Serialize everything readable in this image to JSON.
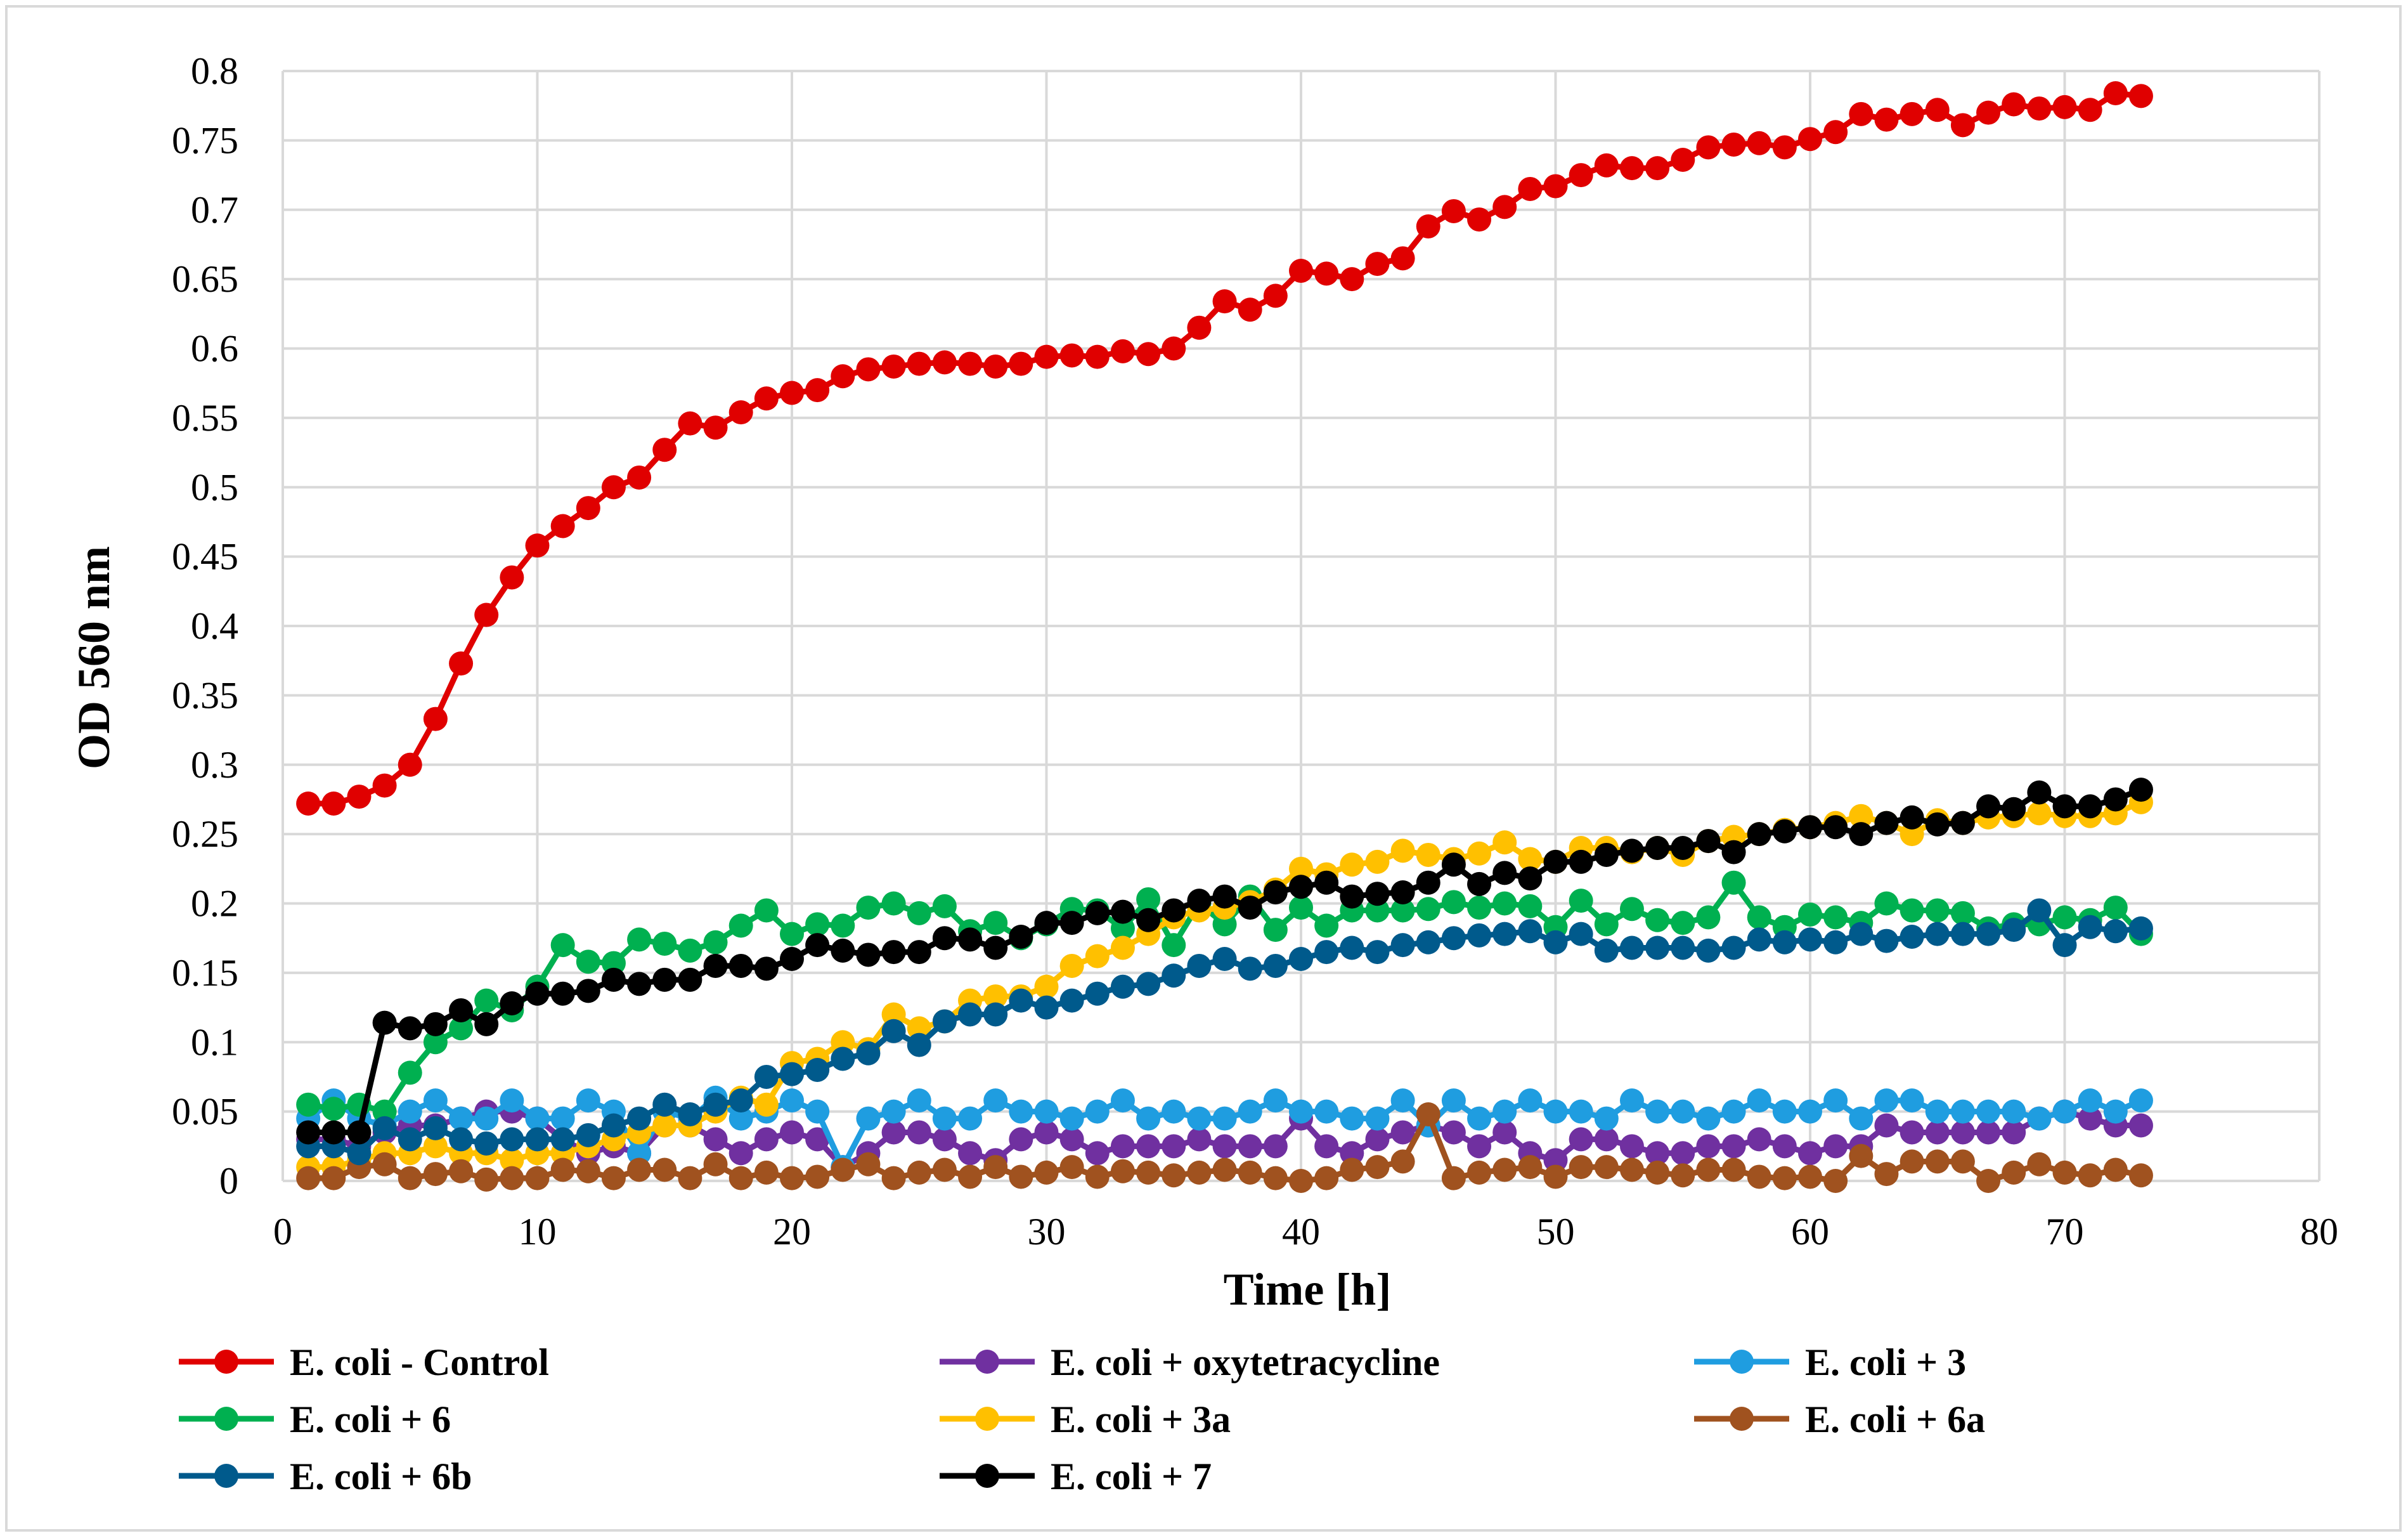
{
  "chart_data": {
    "type": "line",
    "xlabel": "Time [h]",
    "ylabel": "OD 560 nm",
    "xlim": [
      0,
      80
    ],
    "ylim": [
      0,
      0.8
    ],
    "x_ticks": [
      "0",
      "10",
      "20",
      "30",
      "40",
      "50",
      "60",
      "70",
      "80"
    ],
    "y_ticks": [
      "0",
      "0.05",
      "0.1",
      "0.15",
      "0.2",
      "0.25",
      "0.3",
      "0.35",
      "0.4",
      "0.45",
      "0.5",
      "0.55",
      "0.6",
      "0.65",
      "0.7",
      "0.75",
      "0.8"
    ],
    "grid": true,
    "legend_position": "bottom",
    "series": [
      {
        "name": "E. coli - Control",
        "color": "#e00000",
        "x_start": 1,
        "values": [
          0.272,
          0.272,
          0.277,
          0.285,
          0.3,
          0.333,
          0.373,
          0.408,
          0.435,
          0.458,
          0.472,
          0.485,
          0.5,
          0.507,
          0.527,
          0.546,
          0.543,
          0.554,
          0.564,
          0.568,
          0.57,
          0.58,
          0.585,
          0.587,
          0.589,
          0.59,
          0.589,
          0.587,
          0.589,
          0.594,
          0.595,
          0.594,
          0.598,
          0.596,
          0.6,
          0.615,
          0.634,
          0.628,
          0.638,
          0.656,
          0.654,
          0.65,
          0.661,
          0.665,
          0.688,
          0.699,
          0.693,
          0.702,
          0.715,
          0.717,
          0.725,
          0.732,
          0.73,
          0.73,
          0.736,
          0.745,
          0.747,
          0.748,
          0.745,
          0.751,
          0.756,
          0.769,
          0.765,
          0.769,
          0.772,
          0.761,
          0.77,
          0.776,
          0.773,
          0.774,
          0.772,
          0.784,
          0.782
        ]
      },
      {
        "name": "E. coli + oxytetracycline",
        "color": "#7030a0",
        "x_start": 1,
        "values": [
          0.03,
          0.03,
          0.025,
          0.035,
          0.04,
          0.04,
          0.045,
          0.05,
          0.05,
          0.045,
          0.03,
          0.02,
          0.025,
          0.02,
          0.04,
          0.04,
          0.03,
          0.02,
          0.03,
          0.035,
          0.03,
          0.01,
          0.02,
          0.035,
          0.035,
          0.03,
          0.02,
          0.015,
          0.03,
          0.035,
          0.03,
          0.02,
          0.025,
          0.025,
          0.025,
          0.03,
          0.025,
          0.025,
          0.025,
          0.045,
          0.025,
          0.02,
          0.03,
          0.035,
          0.04,
          0.035,
          0.025,
          0.035,
          0.02,
          0.015,
          0.03,
          0.03,
          0.025,
          0.02,
          0.02,
          0.025,
          0.025,
          0.03,
          0.025,
          0.02,
          0.025,
          0.025,
          0.04,
          0.035,
          0.035,
          0.035,
          0.035,
          0.035,
          0.045,
          0.05,
          0.045,
          0.04,
          0.04
        ]
      },
      {
        "name": "E. coli + 3",
        "color": "#1f9de0",
        "x_start": 1,
        "values": [
          0.045,
          0.058,
          0.045,
          0.04,
          0.05,
          0.058,
          0.045,
          0.045,
          0.058,
          0.045,
          0.045,
          0.058,
          0.05,
          0.02,
          0.05,
          0.045,
          0.06,
          0.045,
          0.05,
          0.058,
          0.05,
          0.01,
          0.045,
          0.05,
          0.058,
          0.045,
          0.045,
          0.058,
          0.05,
          0.05,
          0.045,
          0.05,
          0.058,
          0.045,
          0.05,
          0.045,
          0.045,
          0.05,
          0.058,
          0.05,
          0.05,
          0.045,
          0.045,
          0.058,
          0.04,
          0.058,
          0.045,
          0.05,
          0.058,
          0.05,
          0.05,
          0.045,
          0.058,
          0.05,
          0.05,
          0.045,
          0.05,
          0.058,
          0.05,
          0.05,
          0.058,
          0.045,
          0.058,
          0.058,
          0.05,
          0.05,
          0.05,
          0.05,
          0.045,
          0.05,
          0.058,
          0.05,
          0.058
        ]
      },
      {
        "name": "E. coli + 6",
        "color": "#00b050",
        "x_start": 1,
        "values": [
          0.055,
          0.052,
          0.055,
          0.05,
          0.078,
          0.1,
          0.11,
          0.13,
          0.123,
          0.14,
          0.17,
          0.158,
          0.157,
          0.174,
          0.171,
          0.166,
          0.172,
          0.184,
          0.195,
          0.178,
          0.185,
          0.184,
          0.197,
          0.2,
          0.193,
          0.198,
          0.18,
          0.186,
          0.175,
          0.185,
          0.196,
          0.195,
          0.182,
          0.203,
          0.17,
          0.2,
          0.185,
          0.205,
          0.181,
          0.197,
          0.184,
          0.195,
          0.195,
          0.195,
          0.196,
          0.201,
          0.197,
          0.2,
          0.198,
          0.183,
          0.202,
          0.185,
          0.196,
          0.188,
          0.186,
          0.19,
          0.215,
          0.19,
          0.183,
          0.192,
          0.19,
          0.186,
          0.2,
          0.195,
          0.195,
          0.193,
          0.182,
          0.185,
          0.185,
          0.19,
          0.188,
          0.197,
          0.178
        ]
      },
      {
        "name": "E. coli + 3a",
        "color": "#ffc000",
        "x_start": 1,
        "values": [
          0.01,
          0.01,
          0.015,
          0.02,
          0.02,
          0.025,
          0.02,
          0.02,
          0.015,
          0.02,
          0.02,
          0.025,
          0.03,
          0.035,
          0.04,
          0.04,
          0.05,
          0.06,
          0.055,
          0.085,
          0.088,
          0.1,
          0.095,
          0.12,
          0.11,
          0.115,
          0.13,
          0.133,
          0.133,
          0.14,
          0.155,
          0.162,
          0.168,
          0.178,
          0.19,
          0.195,
          0.197,
          0.201,
          0.21,
          0.225,
          0.221,
          0.228,
          0.23,
          0.238,
          0.235,
          0.232,
          0.236,
          0.244,
          0.232,
          0.23,
          0.24,
          0.24,
          0.237,
          0.24,
          0.235,
          0.245,
          0.248,
          0.25,
          0.253,
          0.255,
          0.258,
          0.263,
          0.258,
          0.25,
          0.26,
          0.258,
          0.262,
          0.263,
          0.265,
          0.263,
          0.263,
          0.265,
          0.273
        ]
      },
      {
        "name": "E. coli + 6a",
        "color": "#a0521f",
        "x_start": 1,
        "values": [
          0.002,
          0.002,
          0.01,
          0.012,
          0.002,
          0.005,
          0.007,
          0.001,
          0.002,
          0.002,
          0.008,
          0.007,
          0.002,
          0.008,
          0.008,
          0.002,
          0.012,
          0.002,
          0.006,
          0.002,
          0.003,
          0.008,
          0.012,
          0.002,
          0.006,
          0.008,
          0.003,
          0.01,
          0.003,
          0.006,
          0.01,
          0.003,
          0.007,
          0.006,
          0.004,
          0.006,
          0.008,
          0.006,
          0.002,
          0.0,
          0.002,
          0.008,
          0.01,
          0.014,
          0.048,
          0.002,
          0.006,
          0.008,
          0.01,
          0.003,
          0.01,
          0.01,
          0.008,
          0.006,
          0.004,
          0.008,
          0.008,
          0.003,
          0.002,
          0.003,
          0.0,
          0.018,
          0.005,
          0.014,
          0.014,
          0.014,
          0.0,
          0.006,
          0.012,
          0.006,
          0.004,
          0.008,
          0.004
        ]
      },
      {
        "name": "E. coli + 6b",
        "color": "#005a8c",
        "x_start": 1,
        "values": [
          0.025,
          0.025,
          0.02,
          0.038,
          0.03,
          0.038,
          0.03,
          0.027,
          0.03,
          0.03,
          0.03,
          0.033,
          0.04,
          0.045,
          0.055,
          0.048,
          0.055,
          0.058,
          0.075,
          0.077,
          0.08,
          0.088,
          0.092,
          0.108,
          0.098,
          0.115,
          0.12,
          0.12,
          0.13,
          0.125,
          0.13,
          0.135,
          0.14,
          0.142,
          0.148,
          0.155,
          0.16,
          0.153,
          0.155,
          0.16,
          0.165,
          0.168,
          0.165,
          0.17,
          0.172,
          0.175,
          0.177,
          0.178,
          0.18,
          0.172,
          0.178,
          0.166,
          0.168,
          0.168,
          0.168,
          0.166,
          0.168,
          0.174,
          0.172,
          0.174,
          0.172,
          0.178,
          0.173,
          0.176,
          0.178,
          0.178,
          0.178,
          0.181,
          0.195,
          0.17,
          0.183,
          0.18,
          0.182
        ]
      },
      {
        "name": "E. coli + 7",
        "color": "#000000",
        "x_start": 1,
        "values": [
          0.035,
          0.035,
          0.035,
          0.114,
          0.11,
          0.113,
          0.123,
          0.113,
          0.128,
          0.135,
          0.135,
          0.137,
          0.145,
          0.142,
          0.145,
          0.145,
          0.155,
          0.155,
          0.153,
          0.16,
          0.17,
          0.166,
          0.163,
          0.165,
          0.165,
          0.175,
          0.174,
          0.168,
          0.176,
          0.186,
          0.186,
          0.193,
          0.194,
          0.188,
          0.195,
          0.202,
          0.205,
          0.197,
          0.208,
          0.212,
          0.215,
          0.205,
          0.207,
          0.208,
          0.215,
          0.228,
          0.214,
          0.222,
          0.218,
          0.23,
          0.23,
          0.235,
          0.238,
          0.24,
          0.24,
          0.245,
          0.237,
          0.25,
          0.252,
          0.255,
          0.255,
          0.25,
          0.258,
          0.262,
          0.257,
          0.258,
          0.27,
          0.268,
          0.28,
          0.27,
          0.27,
          0.275,
          0.282
        ]
      }
    ]
  }
}
